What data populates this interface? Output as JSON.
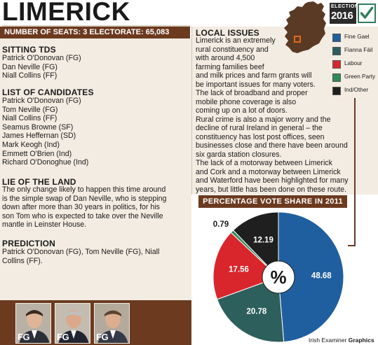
{
  "header": {
    "title": "LIMERICK",
    "seats_line": "NUMBER OF SEATS: 3 ELECTORATE: 65,083",
    "brand_top": "ELECTION",
    "brand_year": "2016"
  },
  "sitting_tds": {
    "heading": "SITTING TDS",
    "items": [
      "Patrick O'Donovan (FG)",
      "Dan Neville (FG)",
      "Niall Collins (FF)"
    ]
  },
  "candidates": {
    "heading": "LIST OF CANDIDATES",
    "items": [
      "Patrick O'Donovan (FG)",
      "Tom Neville (FG)",
      "Niall Collins (FF)",
      "Seamus Browne (SF)",
      "James Heffernan (SD)",
      "Mark Keogh (Ind)",
      "Emmett O'Brien (Ind)",
      "Richard O'Donoghue (Ind)"
    ]
  },
  "lie_of_land": {
    "heading": "LIE OF THE LAND",
    "lines": [
      "The only change likely to happen this time around",
      "is the simple swap of Dan Neville, who is stepping",
      "down after more than 30 years in politics, for his",
      "son Tom who is expected to take over the Neville",
      "mantle in Leinster House."
    ]
  },
  "prediction": {
    "heading": "PREDICTION",
    "lines": [
      "Patrick O'Donovan (FG), Tom Neville (FG), Niall",
      "Collins (FF)."
    ]
  },
  "local_issues": {
    "heading": "LOCAL ISSUES",
    "lines": [
      "Limerick is an extremely",
      "rural constituency and",
      "with around 4,500",
      "farming families beef",
      "and milk prices and farm grants will",
      "be important issues for many voters.",
      "The lack of broadband and proper",
      "mobile phone coverage is also",
      "coming up on a lot of doors.",
      "Rural crime is also a major worry and the",
      "decline of rural Ireland in general – the",
      "constituency has lost post offices, seen",
      "businesses close and there have been around",
      "six garda station closures.",
      "The lack of a motorway between Limerick",
      "and Cork and a motorway between Limerick",
      "and Waterford have been highlighted for many",
      "years, but little has been done on these route."
    ]
  },
  "legend": [
    {
      "label": "Fine Gael",
      "color": "#1f5fa0"
    },
    {
      "label": "Fianna Fáil",
      "color": "#2d5f5d"
    },
    {
      "label": "Labour",
      "color": "#d9262c"
    },
    {
      "label": "Green Party",
      "color": "#2e8b57"
    },
    {
      "label": "Ind/Other",
      "color": "#1f1f1f"
    }
  ],
  "vote_share_title": "PERCENTAGE VOTE SHARE IN 2011",
  "chart_data": {
    "type": "pie",
    "title": "PERCENTAGE VOTE SHARE IN 2011",
    "center_label": "%",
    "slices": [
      {
        "name": "Fine Gael",
        "value": 48.68,
        "color": "#1f5fa0"
      },
      {
        "name": "Fianna Fáil",
        "value": 20.78,
        "color": "#2d5f5d"
      },
      {
        "name": "Labour",
        "value": 17.56,
        "color": "#d9262c"
      },
      {
        "name": "Green Party",
        "value": 0.79,
        "color": "#2e8b57"
      },
      {
        "name": "Ind/Other",
        "value": 12.19,
        "color": "#1f1f1f"
      }
    ]
  },
  "photos": [
    {
      "party": "FG"
    },
    {
      "party": "FG"
    },
    {
      "party": "FG"
    }
  ],
  "credit": {
    "source": "Irish Examiner",
    "suffix": "Graphics"
  },
  "colors": {
    "brown": "#6b3a1f",
    "panel": "#f3ece2",
    "map": "#5a3a24",
    "limerick_marker": "#e06a1f"
  }
}
